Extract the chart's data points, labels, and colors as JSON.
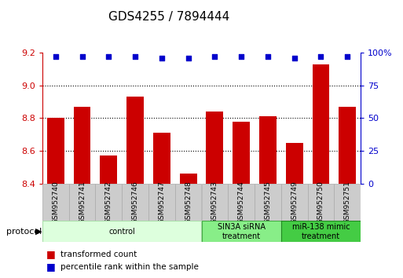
{
  "title": "GDS4255 / 7894444",
  "samples": [
    "GSM952740",
    "GSM952741",
    "GSM952742",
    "GSM952746",
    "GSM952747",
    "GSM952748",
    "GSM952743",
    "GSM952744",
    "GSM952745",
    "GSM952749",
    "GSM952750",
    "GSM952751"
  ],
  "bar_values": [
    8.8,
    8.87,
    8.57,
    8.93,
    8.71,
    8.46,
    8.84,
    8.78,
    8.81,
    8.65,
    9.13,
    8.87
  ],
  "percentile_values": [
    97,
    97,
    97,
    97,
    96,
    96,
    97,
    97,
    97,
    96,
    97,
    97
  ],
  "ylim_left": [
    8.4,
    9.2
  ],
  "ylim_right": [
    0,
    100
  ],
  "yticks_left": [
    8.4,
    8.6,
    8.8,
    9.0,
    9.2
  ],
  "yticks_right": [
    0,
    25,
    50,
    75,
    100
  ],
  "bar_color": "#cc0000",
  "dot_color": "#0000cc",
  "hgrid_values": [
    8.6,
    8.8,
    9.0
  ],
  "protocol_groups": [
    {
      "label": "control",
      "start": 0,
      "end": 6,
      "color": "#ddffdd",
      "edge_color": "#aaddaa"
    },
    {
      "label": "SIN3A siRNA\ntreatment",
      "start": 6,
      "end": 9,
      "color": "#88ee88",
      "edge_color": "#44aa44"
    },
    {
      "label": "miR-138 mimic\ntreatment",
      "start": 9,
      "end": 12,
      "color": "#44cc44",
      "edge_color": "#228822"
    }
  ],
  "tick_label_color": "#cc0000",
  "right_tick_color": "#0000cc",
  "title_fontsize": 11,
  "bar_width": 0.65,
  "label_box_color": "#cccccc",
  "label_box_edge": "#aaaaaa"
}
